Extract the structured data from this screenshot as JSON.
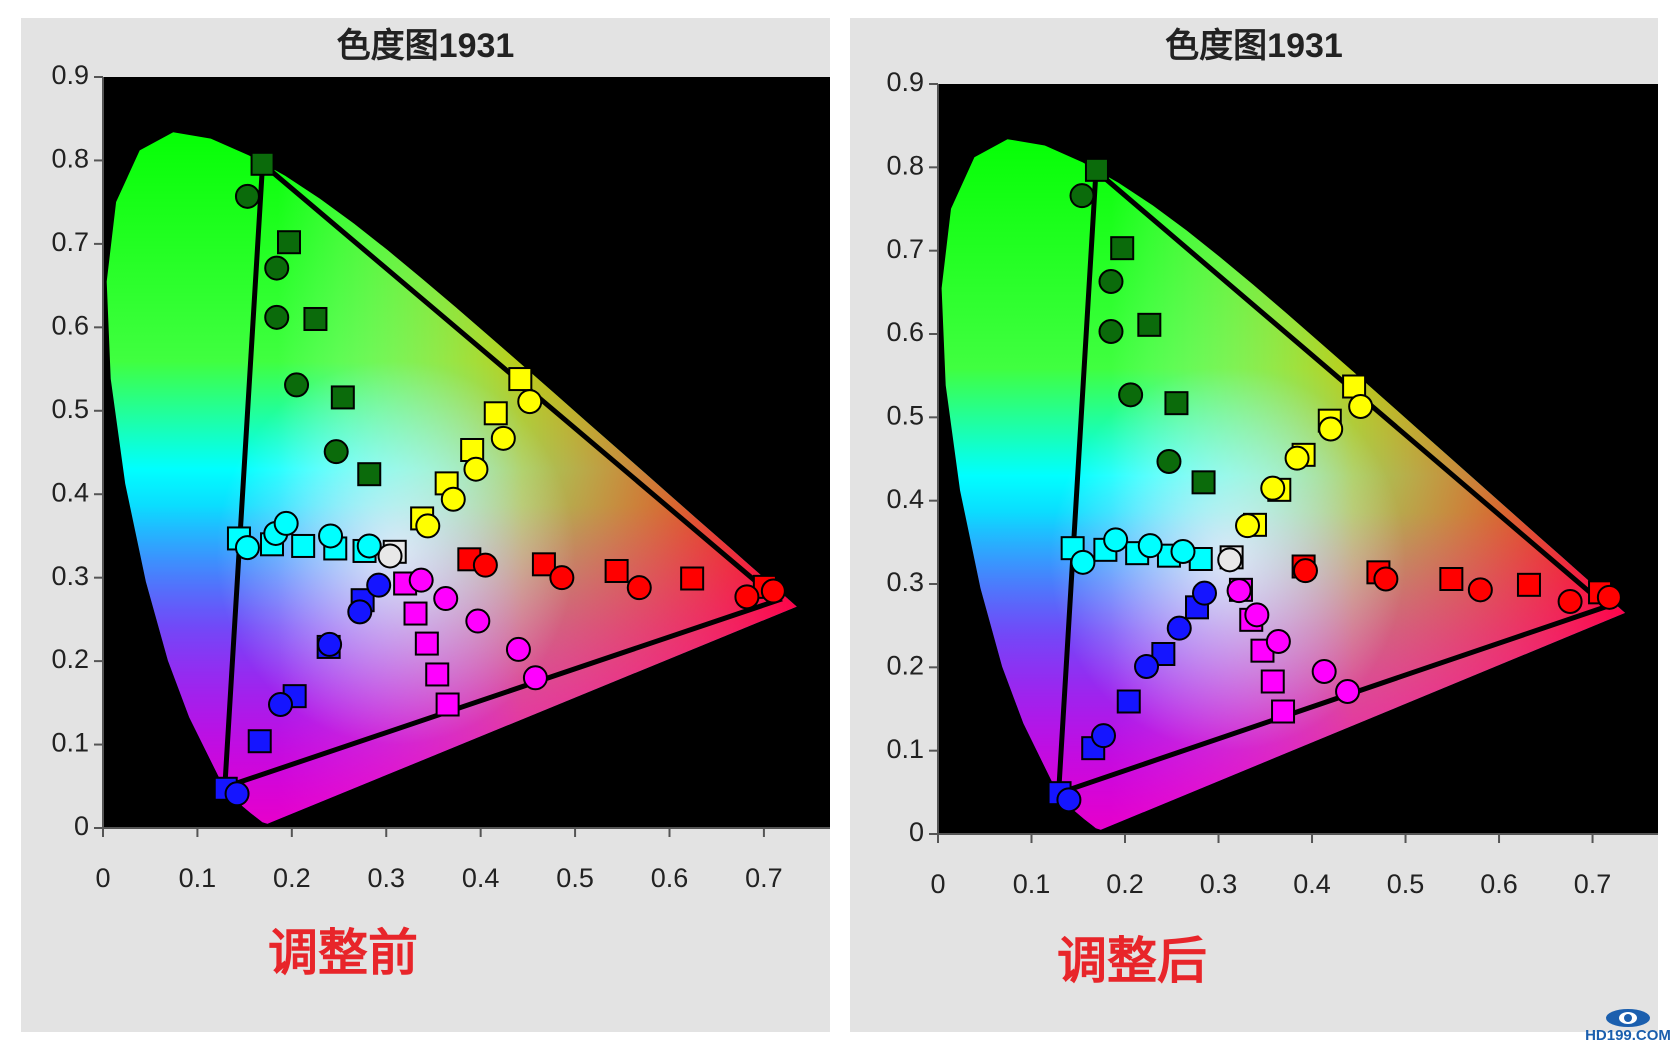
{
  "chart_data": [
    {
      "type": "scatter",
      "title": "色度图1931",
      "annotation": "调整前",
      "xlim": [
        0,
        0.77
      ],
      "ylim": [
        0,
        0.9
      ],
      "xticks": [
        0,
        0.1,
        0.2,
        0.3,
        0.4,
        0.5,
        0.6,
        0.7
      ],
      "yticks": [
        0,
        0.1,
        0.2,
        0.3,
        0.4,
        0.5,
        0.6,
        0.7,
        0.8,
        0.9
      ],
      "series": [
        {
          "marker": "polygon",
          "color": "#000000",
          "x": [
            0.169,
            0.715,
            0.129
          ],
          "values": [
            0.796,
            0.273,
            0.049
          ]
        },
        {
          "marker": "square",
          "color": "#0b6b0b",
          "x": [
            0.169,
            0.197,
            0.225,
            0.254,
            0.282
          ],
          "values": [
            0.796,
            0.702,
            0.61,
            0.516,
            0.424
          ]
        },
        {
          "marker": "square",
          "color": "#ffff00",
          "x": [
            0.442,
            0.416,
            0.391,
            0.364,
            0.338
          ],
          "values": [
            0.538,
            0.497,
            0.453,
            0.413,
            0.371
          ]
        },
        {
          "marker": "square",
          "color": "#ff0000",
          "x": [
            0.701,
            0.624,
            0.544,
            0.467,
            0.388
          ],
          "values": [
            0.289,
            0.299,
            0.308,
            0.316,
            0.322
          ]
        },
        {
          "marker": "square",
          "color": "#ff00ff",
          "x": [
            0.32,
            0.331,
            0.343,
            0.354,
            0.365
          ],
          "values": [
            0.293,
            0.257,
            0.221,
            0.184,
            0.148
          ]
        },
        {
          "marker": "square",
          "color": "#1515ff",
          "x": [
            0.13,
            0.166,
            0.203,
            0.239,
            0.275
          ],
          "values": [
            0.047,
            0.104,
            0.158,
            0.217,
            0.273
          ]
        },
        {
          "marker": "square",
          "color": "#00ffff",
          "x": [
            0.144,
            0.179,
            0.212,
            0.246,
            0.277
          ],
          "values": [
            0.347,
            0.34,
            0.338,
            0.335,
            0.332
          ]
        },
        {
          "marker": "square",
          "color": "#e8e8e8",
          "x": [
            0.309
          ],
          "values": [
            0.331
          ]
        },
        {
          "marker": "circle",
          "color": "#0b6b0b",
          "x": [
            0.153,
            0.184,
            0.184,
            0.205,
            0.247
          ],
          "values": [
            0.757,
            0.671,
            0.612,
            0.531,
            0.451
          ]
        },
        {
          "marker": "circle",
          "color": "#ffff00",
          "x": [
            0.452,
            0.424,
            0.395,
            0.371,
            0.344
          ],
          "values": [
            0.511,
            0.467,
            0.43,
            0.394,
            0.362
          ]
        },
        {
          "marker": "circle",
          "color": "#ff0000",
          "x": [
            0.71,
            0.682,
            0.568,
            0.486,
            0.405
          ],
          "values": [
            0.284,
            0.277,
            0.288,
            0.3,
            0.315
          ]
        },
        {
          "marker": "circle",
          "color": "#ff00ff",
          "x": [
            0.337,
            0.363,
            0.397,
            0.44,
            0.458
          ],
          "values": [
            0.297,
            0.275,
            0.248,
            0.214,
            0.18
          ]
        },
        {
          "marker": "circle",
          "color": "#1515ff",
          "x": [
            0.142,
            0.188,
            0.24,
            0.272,
            0.292
          ],
          "values": [
            0.041,
            0.148,
            0.22,
            0.259,
            0.291
          ]
        },
        {
          "marker": "circle",
          "color": "#00ffff",
          "x": [
            0.153,
            0.183,
            0.194,
            0.241,
            0.282
          ],
          "values": [
            0.336,
            0.353,
            0.365,
            0.35,
            0.338
          ]
        },
        {
          "marker": "circle",
          "color": "#e8e8e8",
          "x": [
            0.304
          ],
          "values": [
            0.326
          ]
        }
      ]
    },
    {
      "type": "scatter",
      "title": "色度图1931",
      "annotation": "调整后",
      "xlim": [
        0,
        0.77
      ],
      "ylim": [
        0,
        0.9
      ],
      "xticks": [
        0,
        0.1,
        0.2,
        0.3,
        0.4,
        0.5,
        0.6,
        0.7
      ],
      "yticks": [
        0,
        0.1,
        0.2,
        0.3,
        0.4,
        0.5,
        0.6,
        0.7,
        0.8,
        0.9
      ],
      "series": [
        {
          "marker": "polygon",
          "color": "#000000",
          "x": [
            0.169,
            0.715,
            0.129
          ],
          "values": [
            0.796,
            0.273,
            0.049
          ]
        },
        {
          "marker": "square",
          "color": "#0b6b0b",
          "x": [
            0.17,
            0.197,
            0.226,
            0.255,
            0.284
          ],
          "values": [
            0.797,
            0.703,
            0.611,
            0.517,
            0.422
          ]
        },
        {
          "marker": "square",
          "color": "#ffff00",
          "x": [
            0.445,
            0.419,
            0.391,
            0.365,
            0.339
          ],
          "values": [
            0.537,
            0.496,
            0.455,
            0.413,
            0.371
          ]
        },
        {
          "marker": "square",
          "color": "#ff0000",
          "x": [
            0.708,
            0.632,
            0.549,
            0.471,
            0.391
          ],
          "values": [
            0.29,
            0.299,
            0.306,
            0.314,
            0.321
          ]
        },
        {
          "marker": "square",
          "color": "#ff00ff",
          "x": [
            0.324,
            0.335,
            0.347,
            0.358,
            0.369
          ],
          "values": [
            0.293,
            0.257,
            0.22,
            0.183,
            0.147
          ]
        },
        {
          "marker": "square",
          "color": "#1515ff",
          "x": [
            0.13,
            0.166,
            0.204,
            0.241,
            0.277
          ],
          "values": [
            0.049,
            0.103,
            0.159,
            0.216,
            0.272
          ]
        },
        {
          "marker": "square",
          "color": "#00ffff",
          "x": [
            0.144,
            0.179,
            0.213,
            0.247,
            0.281
          ],
          "values": [
            0.343,
            0.341,
            0.337,
            0.334,
            0.33
          ]
        },
        {
          "marker": "square",
          "color": "#e8e8e8",
          "x": [
            0.314
          ],
          "values": [
            0.332
          ]
        },
        {
          "marker": "circle",
          "color": "#0b6b0b",
          "x": [
            0.154,
            0.185,
            0.185,
            0.206,
            0.247
          ],
          "values": [
            0.766,
            0.663,
            0.603,
            0.527,
            0.447
          ]
        },
        {
          "marker": "circle",
          "color": "#ffff00",
          "x": [
            0.452,
            0.42,
            0.384,
            0.358,
            0.331
          ],
          "values": [
            0.513,
            0.486,
            0.451,
            0.415,
            0.37
          ]
        },
        {
          "marker": "circle",
          "color": "#ff0000",
          "x": [
            0.718,
            0.676,
            0.58,
            0.479,
            0.393
          ],
          "values": [
            0.284,
            0.279,
            0.293,
            0.306,
            0.316
          ]
        },
        {
          "marker": "circle",
          "color": "#ff00ff",
          "x": [
            0.322,
            0.341,
            0.364,
            0.413,
            0.438
          ],
          "values": [
            0.292,
            0.263,
            0.231,
            0.195,
            0.171
          ]
        },
        {
          "marker": "circle",
          "color": "#1515ff",
          "x": [
            0.14,
            0.177,
            0.223,
            0.258,
            0.285
          ],
          "values": [
            0.041,
            0.118,
            0.201,
            0.247,
            0.289
          ]
        },
        {
          "marker": "circle",
          "color": "#00ffff",
          "x": [
            0.155,
            0.19,
            0.227,
            0.262
          ],
          "values": [
            0.326,
            0.353,
            0.346,
            0.339
          ]
        },
        {
          "marker": "circle",
          "color": "#e8e8e8",
          "x": [
            0.312
          ],
          "values": [
            0.329
          ]
        }
      ]
    }
  ],
  "watermark": "HD199.COM"
}
